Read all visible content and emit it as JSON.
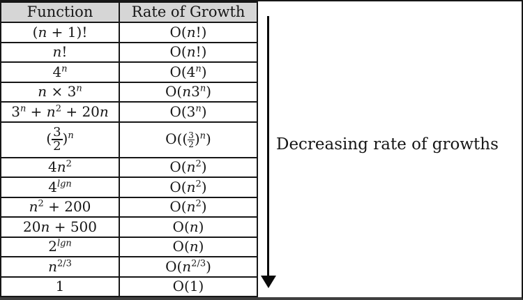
{
  "colors": {
    "header_bg": "#d6d6d6",
    "border": "#161616",
    "text": "#161616",
    "frame_bottom": "#3f3f3f",
    "arrow": "#0a0a0a"
  },
  "annotation": {
    "label": "Decreasing rate of growths",
    "arrow_icon": "down-arrow"
  },
  "table": {
    "headers": [
      "Function",
      "Rate of Growth"
    ],
    "rows": [
      {
        "plain": [
          "(n + 1)!",
          "O(n!)"
        ],
        "function": [
          {
            "t": "(",
            "s": "n"
          },
          {
            "t": "n",
            "s": "i"
          },
          {
            "t": " + 1)!",
            "s": "n"
          }
        ],
        "growth": [
          {
            "t": "O(",
            "s": "n"
          },
          {
            "t": "n",
            "s": "i"
          },
          {
            "t": "!)",
            "s": "n"
          }
        ]
      },
      {
        "plain": [
          "n!",
          "O(n!)"
        ],
        "function": [
          {
            "t": "n",
            "s": "i"
          },
          {
            "t": "!",
            "s": "n"
          }
        ],
        "growth": [
          {
            "t": "O(",
            "s": "n"
          },
          {
            "t": "n",
            "s": "i"
          },
          {
            "t": "!)",
            "s": "n"
          }
        ]
      },
      {
        "plain": [
          "4^n",
          "O(4^n)"
        ],
        "function": [
          {
            "t": "4",
            "s": "n"
          },
          {
            "t": "n",
            "s": "isup"
          }
        ],
        "growth": [
          {
            "t": "O(4",
            "s": "n"
          },
          {
            "t": "n",
            "s": "isup"
          },
          {
            "t": ")",
            "s": "n"
          }
        ]
      },
      {
        "plain": [
          "n × 3^n",
          "O(n3^n)"
        ],
        "function": [
          {
            "t": "n",
            "s": "i"
          },
          {
            "t": " × 3",
            "s": "n"
          },
          {
            "t": "n",
            "s": "isup"
          }
        ],
        "growth": [
          {
            "t": "O(",
            "s": "n"
          },
          {
            "t": "n",
            "s": "i"
          },
          {
            "t": "3",
            "s": "n"
          },
          {
            "t": "n",
            "s": "isup"
          },
          {
            "t": ")",
            "s": "n"
          }
        ]
      },
      {
        "plain": [
          "3^n + n^2 + 20n",
          "O(3^n)"
        ],
        "function": [
          {
            "t": "3",
            "s": "n"
          },
          {
            "t": "n",
            "s": "isup"
          },
          {
            "t": " + ",
            "s": "n"
          },
          {
            "t": "n",
            "s": "i"
          },
          {
            "t": "2",
            "s": "sup"
          },
          {
            "t": " + 20",
            "s": "n"
          },
          {
            "t": "n",
            "s": "i"
          }
        ],
        "growth": [
          {
            "t": "O(3",
            "s": "n"
          },
          {
            "t": "n",
            "s": "isup"
          },
          {
            "t": ")",
            "s": "n"
          }
        ]
      },
      {
        "tall": true,
        "plain": [
          "(3/2)^n",
          "O((3/2)^n)"
        ],
        "function": [
          {
            "t": "(",
            "s": "n"
          },
          {
            "t": "3/2",
            "s": "fr"
          },
          {
            "t": ")",
            "s": "n"
          },
          {
            "t": "n",
            "s": "isup"
          }
        ],
        "growth": [
          {
            "t": "O((",
            "s": "n"
          },
          {
            "t": "3/2",
            "s": "frs"
          },
          {
            "t": ")",
            "s": "n"
          },
          {
            "t": "n",
            "s": "isup"
          },
          {
            "t": ")",
            "s": "n"
          }
        ]
      },
      {
        "plain": [
          "4n^2",
          "O(n^2)"
        ],
        "function": [
          {
            "t": "4",
            "s": "n"
          },
          {
            "t": "n",
            "s": "i"
          },
          {
            "t": "2",
            "s": "sup"
          }
        ],
        "growth": [
          {
            "t": "O(",
            "s": "n"
          },
          {
            "t": "n",
            "s": "i"
          },
          {
            "t": "2",
            "s": "sup"
          },
          {
            "t": ")",
            "s": "n"
          }
        ]
      },
      {
        "plain": [
          "4^lgn",
          "O(n^2)"
        ],
        "function": [
          {
            "t": "4",
            "s": "n"
          },
          {
            "t": "lgn",
            "s": "isup"
          }
        ],
        "growth": [
          {
            "t": "O(",
            "s": "n"
          },
          {
            "t": "n",
            "s": "i"
          },
          {
            "t": "2",
            "s": "sup"
          },
          {
            "t": ")",
            "s": "n"
          }
        ]
      },
      {
        "plain": [
          "n^2 + 200",
          "O(n^2)"
        ],
        "function": [
          {
            "t": "n",
            "s": "i"
          },
          {
            "t": "2",
            "s": "sup"
          },
          {
            "t": " + 200",
            "s": "n"
          }
        ],
        "growth": [
          {
            "t": "O(",
            "s": "n"
          },
          {
            "t": "n",
            "s": "i"
          },
          {
            "t": "2",
            "s": "sup"
          },
          {
            "t": ")",
            "s": "n"
          }
        ]
      },
      {
        "plain": [
          "20n + 500",
          "O(n)"
        ],
        "function": [
          {
            "t": "20",
            "s": "n"
          },
          {
            "t": "n",
            "s": "i"
          },
          {
            "t": " + 500",
            "s": "n"
          }
        ],
        "growth": [
          {
            "t": "O(",
            "s": "n"
          },
          {
            "t": "n",
            "s": "i"
          },
          {
            "t": ")",
            "s": "n"
          }
        ]
      },
      {
        "plain": [
          "2^lgn",
          "O(n)"
        ],
        "function": [
          {
            "t": "2",
            "s": "n"
          },
          {
            "t": "lgn",
            "s": "isup"
          }
        ],
        "growth": [
          {
            "t": "O(",
            "s": "n"
          },
          {
            "t": "n",
            "s": "i"
          },
          {
            "t": ")",
            "s": "n"
          }
        ]
      },
      {
        "plain": [
          "n^2/3",
          "O(n^2/3)"
        ],
        "function": [
          {
            "t": "n",
            "s": "i"
          },
          {
            "t": "2/3",
            "s": "sup"
          }
        ],
        "growth": [
          {
            "t": "O(",
            "s": "n"
          },
          {
            "t": "n",
            "s": "i"
          },
          {
            "t": "2/3",
            "s": "sup"
          },
          {
            "t": ")",
            "s": "n"
          }
        ]
      },
      {
        "plain": [
          "1",
          "O(1)"
        ],
        "function": [
          {
            "t": "1",
            "s": "n"
          }
        ],
        "growth": [
          {
            "t": "O(1)",
            "s": "n"
          }
        ]
      }
    ]
  },
  "chart_data": {
    "type": "table",
    "columns": [
      "Function",
      "Rate of Growth"
    ],
    "rows": [
      [
        "(n + 1)!",
        "O(n!)"
      ],
      [
        "n!",
        "O(n!)"
      ],
      [
        "4^n",
        "O(4^n)"
      ],
      [
        "n × 3^n",
        "O(n3^n)"
      ],
      [
        "3^n + n^2 + 20n",
        "O(3^n)"
      ],
      [
        "(3/2)^n",
        "O((3/2)^n)"
      ],
      [
        "4n^2",
        "O(n^2)"
      ],
      [
        "4^lgn",
        "O(n^2)"
      ],
      [
        "n^2 + 200",
        "O(n^2)"
      ],
      [
        "20n + 500",
        "O(n)"
      ],
      [
        "2^lgn",
        "O(n)"
      ],
      [
        "n^2/3",
        "O(n^2/3)"
      ],
      [
        "1",
        "O(1)"
      ]
    ],
    "annotation": "Decreasing rate of growths (downward arrow alongside table, top to bottom)",
    "layout": "ordered from fastest-growing (top) to slowest-growing (bottom)"
  }
}
